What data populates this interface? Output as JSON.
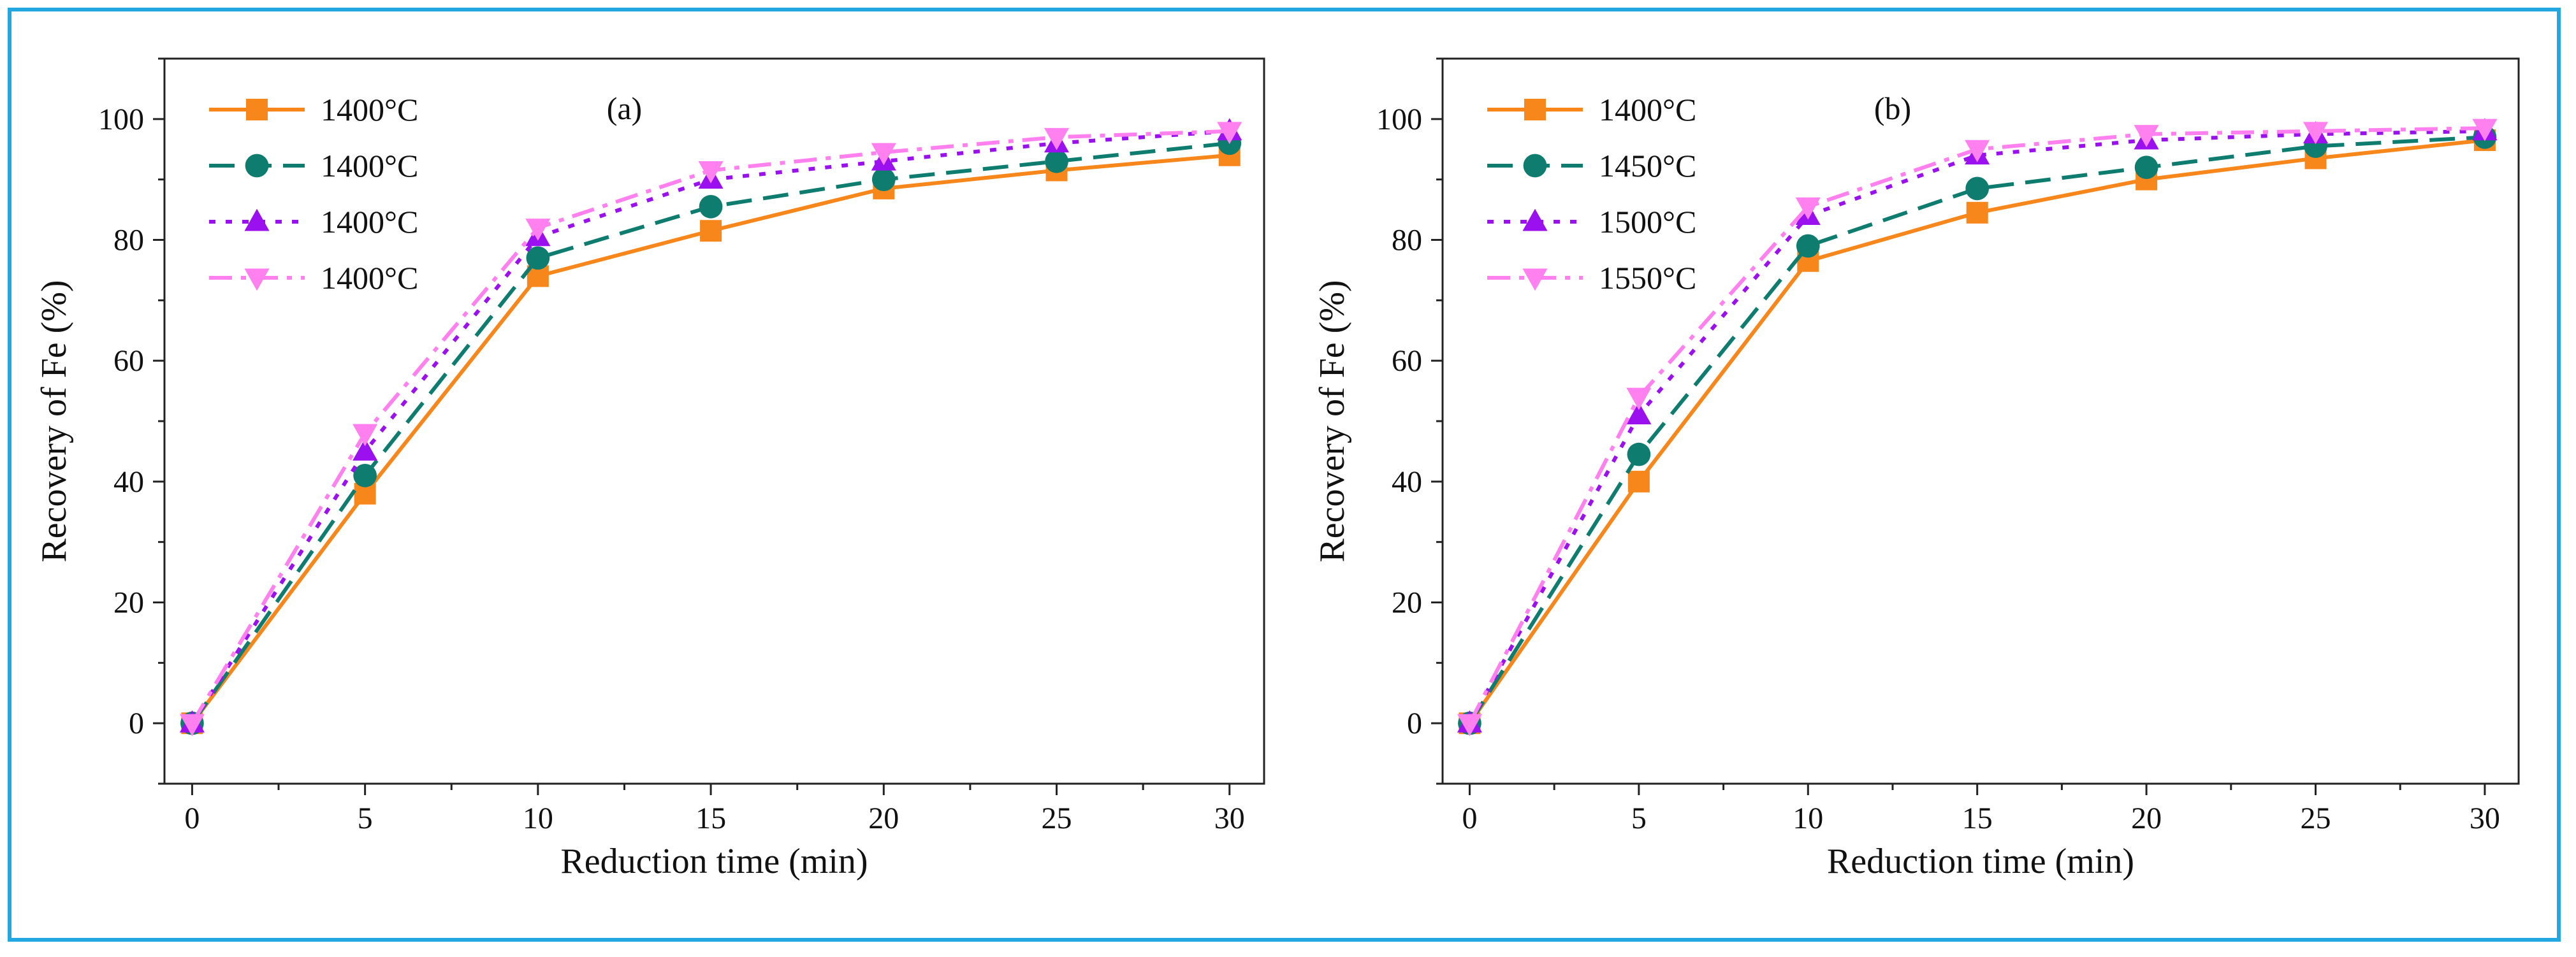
{
  "chart_data": [
    {
      "type": "line",
      "annotation": "(a)",
      "xlabel": "Reduction time (min)",
      "ylabel": "Recovery of Fe (%)",
      "xlim": [
        -0.8,
        31
      ],
      "ylim": [
        -10,
        110
      ],
      "xticks": [
        0,
        5,
        10,
        15,
        20,
        25,
        30
      ],
      "yticks": [
        0,
        20,
        40,
        60,
        80,
        100
      ],
      "legend_position": "top-left",
      "x": [
        0,
        5,
        10,
        15,
        20,
        25,
        30
      ],
      "series": [
        {
          "name": "1400°C",
          "color": "#f7861b",
          "dash": "solid",
          "marker": "square",
          "values": [
            0,
            38,
            74,
            81.5,
            88.5,
            91.5,
            94
          ]
        },
        {
          "name": "1400°C",
          "color": "#0f7c70",
          "dash": "dash",
          "marker": "circle",
          "values": [
            0,
            41,
            77,
            85.5,
            90,
            93,
            96
          ]
        },
        {
          "name": "1400°C",
          "color": "#9b10ee",
          "dash": "dot",
          "marker": "triangle-up",
          "values": [
            0,
            45,
            80.5,
            90,
            93,
            96,
            98
          ]
        },
        {
          "name": "1400°C",
          "color": "#ff80ee",
          "dash": "dashdot",
          "marker": "triangle-down",
          "values": [
            0,
            48,
            82,
            91.5,
            94.5,
            97,
            98
          ]
        }
      ]
    },
    {
      "type": "line",
      "annotation": "(b)",
      "xlabel": "Reduction time (min)",
      "ylabel": "Recovery of Fe (%)",
      "xlim": [
        -0.8,
        31
      ],
      "ylim": [
        -10,
        110
      ],
      "xticks": [
        0,
        5,
        10,
        15,
        20,
        25,
        30
      ],
      "yticks": [
        0,
        20,
        40,
        60,
        80,
        100
      ],
      "legend_position": "top-left",
      "x": [
        0,
        5,
        10,
        15,
        20,
        25,
        30
      ],
      "series": [
        {
          "name": "1400°C",
          "color": "#f7861b",
          "dash": "solid",
          "marker": "square",
          "values": [
            0,
            40,
            76.5,
            84.5,
            90,
            93.5,
            96.5
          ]
        },
        {
          "name": "1450°C",
          "color": "#0f7c70",
          "dash": "dash",
          "marker": "circle",
          "values": [
            0,
            44.5,
            79,
            88.5,
            92,
            95.5,
            97
          ]
        },
        {
          "name": "1500°C",
          "color": "#9b10ee",
          "dash": "dot",
          "marker": "triangle-up",
          "values": [
            0,
            51,
            84,
            94,
            96.5,
            97.5,
            98
          ]
        },
        {
          "name": "1550°C",
          "color": "#ff80ee",
          "dash": "dashdot",
          "marker": "triangle-down",
          "values": [
            0,
            54,
            85.5,
            95,
            97.5,
            98,
            98.5
          ]
        }
      ]
    }
  ]
}
